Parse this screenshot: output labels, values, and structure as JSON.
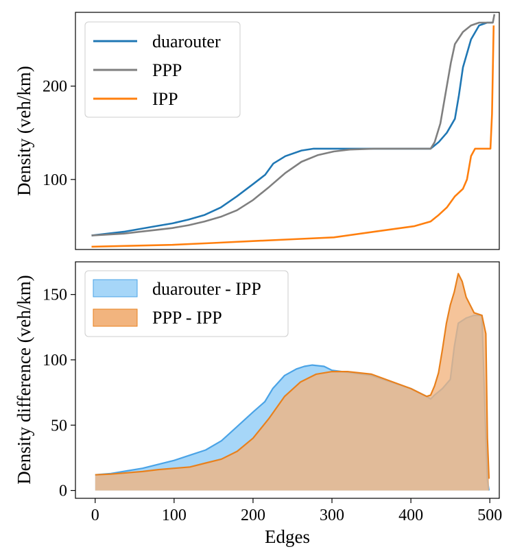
{
  "chart_data": [
    {
      "type": "line",
      "title": "",
      "xlabel": "",
      "ylabel": "Density (veh/km)",
      "xlim": [
        -20,
        505
      ],
      "ylim": [
        25,
        279
      ],
      "x_ticks": [],
      "y_ticks": [
        100,
        200
      ],
      "grid": false,
      "legend_position": "top-left",
      "series": [
        {
          "name": "duarouter",
          "color": "#1f77b4",
          "x": [
            0,
            20,
            40,
            60,
            80,
            100,
            120,
            140,
            160,
            180,
            200,
            215,
            225,
            240,
            260,
            275,
            300,
            350,
            400,
            420,
            430,
            440,
            450,
            455,
            460,
            470,
            480,
            490,
            497
          ],
          "y": [
            40,
            42,
            44,
            47,
            50,
            53,
            57,
            62,
            70,
            82,
            95,
            105,
            117,
            125,
            131,
            133,
            133,
            133,
            133,
            133,
            140,
            150,
            165,
            190,
            220,
            250,
            265,
            268,
            268
          ]
        },
        {
          "name": "PPP",
          "color": "#7f7f7f",
          "x": [
            0,
            20,
            40,
            60,
            80,
            100,
            120,
            140,
            160,
            180,
            200,
            220,
            240,
            260,
            280,
            300,
            320,
            350,
            400,
            420,
            425,
            432,
            440,
            445,
            450,
            460,
            470,
            480,
            490,
            497,
            499
          ],
          "y": [
            40,
            41,
            42,
            44,
            46,
            48,
            51,
            55,
            60,
            67,
            78,
            92,
            107,
            119,
            126,
            130,
            132,
            133,
            133,
            133,
            140,
            160,
            200,
            225,
            245,
            258,
            265,
            268,
            268,
            268,
            277
          ]
        },
        {
          "name": "IPP",
          "color": "#ff7f0e",
          "x": [
            0,
            50,
            100,
            150,
            200,
            250,
            300,
            350,
            400,
            420,
            430,
            440,
            450,
            460,
            465,
            470,
            475,
            480,
            485,
            490,
            494,
            496,
            498
          ],
          "y": [
            28,
            29,
            30,
            32,
            34,
            36,
            38,
            44,
            50,
            55,
            62,
            70,
            82,
            90,
            100,
            125,
            133,
            133,
            133,
            133,
            133,
            170,
            265
          ]
        }
      ]
    },
    {
      "type": "area",
      "title": "",
      "xlabel": "Edges",
      "ylabel": "Density difference (veh/km)",
      "xlim": [
        -25,
        512
      ],
      "ylim": [
        -6,
        175
      ],
      "x_ticks": [
        0,
        100,
        200,
        300,
        400,
        500
      ],
      "y_ticks": [
        0,
        50,
        100,
        150
      ],
      "grid": false,
      "legend_position": "top-left",
      "series": [
        {
          "name": "duarouter - IPP",
          "line_color": "#4aa3e6",
          "fill_color": "#a6d6f8",
          "x": [
            0,
            20,
            40,
            60,
            80,
            100,
            120,
            140,
            160,
            180,
            200,
            215,
            225,
            240,
            255,
            265,
            275,
            290,
            300,
            350,
            400,
            410,
            420,
            425,
            430,
            440,
            450,
            455,
            460,
            470,
            480,
            490,
            495,
            497,
            499
          ],
          "y": [
            12,
            13,
            15,
            17,
            20,
            23,
            27,
            31,
            38,
            49,
            60,
            68,
            78,
            88,
            93,
            95,
            96,
            95,
            92,
            88,
            78,
            75,
            72,
            70,
            73,
            78,
            85,
            110,
            128,
            132,
            134,
            134,
            40,
            8,
            0
          ]
        },
        {
          "name": "PPP - IPP",
          "line_color": "#e8801c",
          "fill_color": "#f2b47e",
          "x": [
            0,
            20,
            40,
            60,
            80,
            100,
            120,
            140,
            160,
            180,
            200,
            220,
            240,
            260,
            280,
            300,
            320,
            350,
            400,
            410,
            420,
            425,
            430,
            435,
            440,
            445,
            450,
            455,
            460,
            465,
            470,
            480,
            490,
            495,
            497,
            499
          ],
          "y": [
            12,
            12.5,
            13.5,
            14.5,
            16,
            17,
            18,
            21,
            24,
            30,
            40,
            55,
            72,
            83,
            89,
            91,
            91,
            89,
            78,
            75,
            72,
            73,
            80,
            90,
            108,
            128,
            142,
            152,
            166,
            160,
            148,
            136,
            134,
            120,
            40,
            9
          ]
        }
      ]
    }
  ]
}
